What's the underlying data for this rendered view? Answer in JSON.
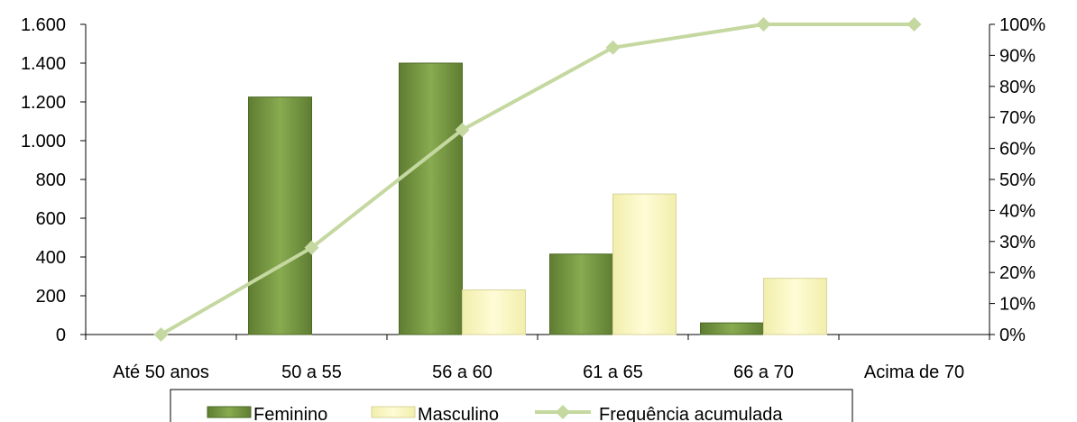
{
  "chart_data": {
    "type": "bar",
    "categories": [
      "Até 50 anos",
      "50 a 55",
      "56 a 60",
      "61 a 65",
      "66 a 70",
      "Acima de 70"
    ],
    "series": [
      {
        "name": "Feminino",
        "kind": "bar",
        "axis": "left",
        "color": "#7a9c45",
        "values": [
          0,
          1225,
          1400,
          415,
          60,
          0
        ]
      },
      {
        "name": "Masculino",
        "kind": "bar",
        "axis": "left",
        "color": "#fbf8c2",
        "values": [
          0,
          0,
          230,
          725,
          290,
          0
        ]
      },
      {
        "name": "Frequência acumulada",
        "kind": "line",
        "axis": "right",
        "color": "#c4d8a0",
        "marker": "diamond",
        "values": [
          0,
          0.28,
          0.66,
          0.925,
          1.0,
          1.0
        ]
      }
    ],
    "y_left": {
      "ylim": [
        0,
        1600
      ],
      "ticks": [
        0,
        200,
        400,
        600,
        800,
        1000,
        1200,
        1400,
        1600
      ],
      "tick_labels": [
        "0",
        "200",
        "400",
        "600",
        "800",
        "1.000",
        "1.200",
        "1.400",
        "1.600"
      ]
    },
    "y_right": {
      "ylim": [
        0,
        1
      ],
      "ticks": [
        0,
        0.1,
        0.2,
        0.3,
        0.4,
        0.5,
        0.6,
        0.7,
        0.8,
        0.9,
        1.0
      ],
      "tick_labels": [
        "0%",
        "10%",
        "20%",
        "30%",
        "40%",
        "50%",
        "60%",
        "70%",
        "80%",
        "90%",
        "100%"
      ]
    },
    "grid": false,
    "legend_position": "bottom"
  }
}
